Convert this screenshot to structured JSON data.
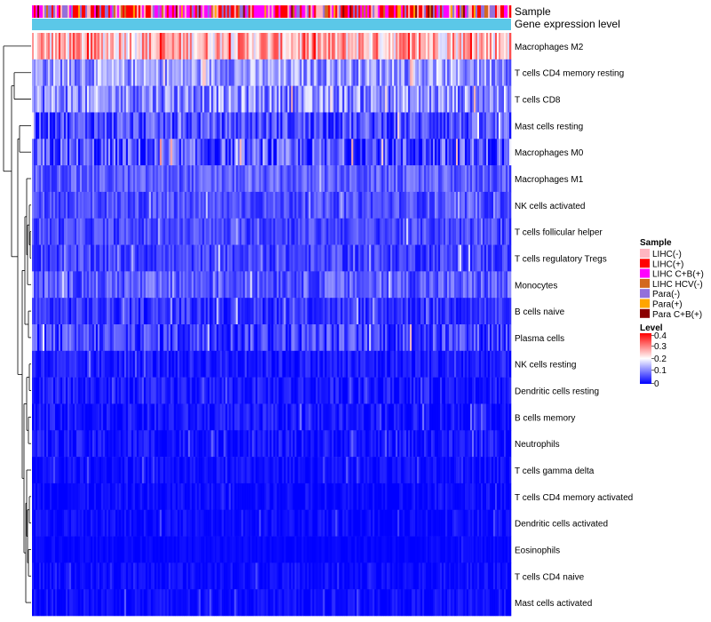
{
  "chart_data": {
    "type": "heatmap",
    "annotation_rows": [
      "Sample",
      "Gene expression level"
    ],
    "rows": [
      {
        "label": "Macrophages M2",
        "mean": 0.26,
        "spread": 0.1
      },
      {
        "label": "T cells CD4 memory resting",
        "mean": 0.12,
        "spread": 0.07
      },
      {
        "label": "T cells CD8",
        "mean": 0.11,
        "spread": 0.08
      },
      {
        "label": "Mast cells resting",
        "mean": 0.06,
        "spread": 0.06
      },
      {
        "label": "Macrophages M0",
        "mean": 0.05,
        "spread": 0.09
      },
      {
        "label": "Macrophages M1",
        "mean": 0.07,
        "spread": 0.04
      },
      {
        "label": "NK cells activated",
        "mean": 0.06,
        "spread": 0.04
      },
      {
        "label": "T cells follicular helper",
        "mean": 0.055,
        "spread": 0.04
      },
      {
        "label": "T cells regulatory  Tregs",
        "mean": 0.05,
        "spread": 0.04
      },
      {
        "label": "Monocytes",
        "mean": 0.07,
        "spread": 0.05
      },
      {
        "label": "B cells naive",
        "mean": 0.04,
        "spread": 0.04
      },
      {
        "label": "Plasma cells",
        "mean": 0.05,
        "spread": 0.06
      },
      {
        "label": "NK cells resting",
        "mean": 0.02,
        "spread": 0.03
      },
      {
        "label": "Dendritic cells resting",
        "mean": 0.02,
        "spread": 0.03
      },
      {
        "label": "B cells memory",
        "mean": 0.015,
        "spread": 0.03
      },
      {
        "label": "Neutrophils",
        "mean": 0.015,
        "spread": 0.03
      },
      {
        "label": "T cells gamma delta",
        "mean": 0.01,
        "spread": 0.02
      },
      {
        "label": "T cells CD4 memory activated",
        "mean": 0.008,
        "spread": 0.02
      },
      {
        "label": "Dendritic cells activated",
        "mean": 0.008,
        "spread": 0.02
      },
      {
        "label": "Eosinophils",
        "mean": 0.004,
        "spread": 0.01
      },
      {
        "label": "T cells CD4 naive",
        "mean": 0.008,
        "spread": 0.02
      },
      {
        "label": "Mast cells activated",
        "mean": 0.01,
        "spread": 0.02
      }
    ],
    "columns_count": 270,
    "level_range": [
      0,
      0.4
    ],
    "gene_expression_color": "#5bc8e8",
    "sample_legend": {
      "title": "Sample",
      "items": [
        {
          "label": "LIHC(-)",
          "color": "#ffb6c1"
        },
        {
          "label": "LIHC(+)",
          "color": "#ff0000"
        },
        {
          "label": "LIHC C+B(+)",
          "color": "#ff00ff"
        },
        {
          "label": "LIHC HCV(-)",
          "color": "#d2691e"
        },
        {
          "label": "Para(-)",
          "color": "#9370db"
        },
        {
          "label": "Para(+)",
          "color": "#ffa500"
        },
        {
          "label": "Para C+B(+)",
          "color": "#8b0000"
        }
      ]
    },
    "level_legend": {
      "title": "Level",
      "ticks": [
        "0.4",
        "0.3",
        "0.2",
        "0.1",
        "0"
      ],
      "colors": [
        "#0000ff",
        "#ffffff",
        "#ff0000"
      ]
    }
  }
}
